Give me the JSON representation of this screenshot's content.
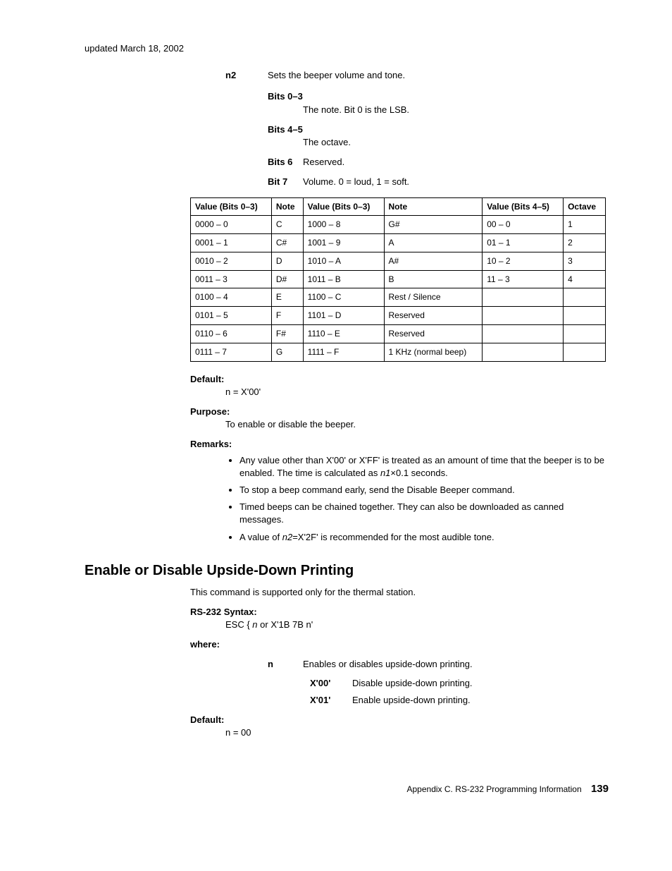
{
  "updated": "updated March 18, 2002",
  "n2": {
    "label": "n2",
    "desc": "Sets the beeper volume and tone.",
    "bits": [
      {
        "label": "Bits 0–3",
        "desc": "The note. Bit 0 is the LSB.",
        "inline": false
      },
      {
        "label": "Bits 4–5",
        "desc": "The octave.",
        "inline": false
      },
      {
        "label": "Bits 6",
        "desc": "Reserved.",
        "inline": true
      },
      {
        "label": "Bit 7",
        "desc": "Volume. 0 = loud, 1 = soft.",
        "inline": true
      }
    ]
  },
  "table": {
    "headers": [
      "Value (Bits 0–3)",
      "Note",
      "Value (Bits 0–3)",
      "Note",
      "Value (Bits 4–5)",
      "Octave"
    ],
    "rows": [
      [
        "0000 – 0",
        "C",
        "1000 – 8",
        "G#",
        "00 – 0",
        "1"
      ],
      [
        "0001 – 1",
        "C#",
        "1001 – 9",
        "A",
        "01 – 1",
        "2"
      ],
      [
        "0010 – 2",
        "D",
        "1010 – A",
        "A#",
        "10 – 2",
        "3"
      ],
      [
        "0011 – 3",
        "D#",
        "1011 – B",
        "B",
        "11 – 3",
        "4"
      ],
      [
        "0100 – 4",
        "E",
        "1100 – C",
        "Rest / Silence",
        "",
        ""
      ],
      [
        "0101 – 5",
        "F",
        "1101 – D",
        "Reserved",
        "",
        ""
      ],
      [
        "0110 – 6",
        "F#",
        "1110 – E",
        "Reserved",
        "",
        ""
      ],
      [
        "0111 – 7",
        "G",
        "1111 – F",
        "1 KHz (normal beep)",
        "",
        ""
      ]
    ]
  },
  "default1": {
    "label": "Default:",
    "value": "n = X'00'"
  },
  "purpose": {
    "label": "Purpose:",
    "value": "To enable or disable the beeper."
  },
  "remarks": {
    "label": "Remarks:",
    "items": [
      {
        "pre": "Any value other than X'00' or X'FF' is treated as an amount of time that the beeper is to be enabled. The time is calculated as ",
        "italic": "n1",
        "post": "×0.1 seconds."
      },
      {
        "pre": "To stop a beep command early, send the Disable Beeper command.",
        "italic": "",
        "post": ""
      },
      {
        "pre": "Timed beeps can be chained together. They can also be downloaded as canned messages.",
        "italic": "",
        "post": ""
      },
      {
        "pre": "A value of ",
        "italic": "n2",
        "post": "=X'2F' is recommended for the most audible tone."
      }
    ]
  },
  "section2": {
    "title": "Enable or Disable Upside-Down Printing",
    "intro": "This command is supported only for the thermal station.",
    "syntax": {
      "label": "RS-232 Syntax:",
      "pre": "ESC { ",
      "italic": "n",
      "post": " or X'1B 7B n'"
    },
    "where": {
      "label": "where:",
      "param": {
        "label": "n",
        "desc": "Enables or disables upside-down printing.",
        "opts": [
          {
            "label": "X'00'",
            "desc": "Disable upside-down printing."
          },
          {
            "label": "X'01'",
            "desc": "Enable upside-down printing."
          }
        ]
      }
    },
    "default": {
      "label": "Default:",
      "value": "n = 00"
    }
  },
  "footer": {
    "text": "Appendix C. RS-232 Programming Information",
    "page": "139"
  }
}
